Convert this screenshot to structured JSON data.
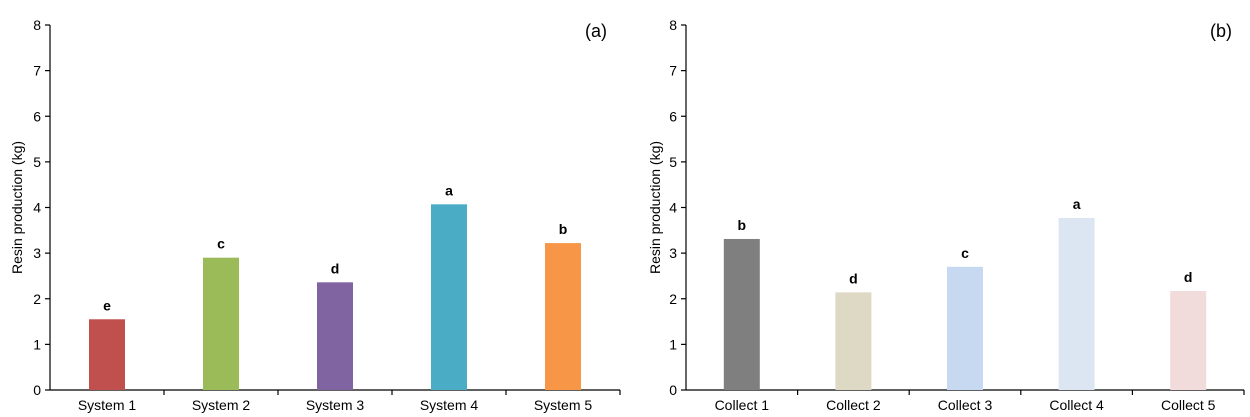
{
  "chart_data": [
    {
      "type": "bar",
      "panel_label": "(a)",
      "ylabel": "Resin production (kg)",
      "xlabel": "",
      "ylim": [
        0,
        8
      ],
      "yticks": [
        "0",
        "1",
        "2",
        "3",
        "4",
        "5",
        "6",
        "7",
        "8"
      ],
      "categories": [
        "System 1",
        "System 2",
        "System 3",
        "System 4",
        "System 5"
      ],
      "values": [
        1.55,
        2.9,
        2.36,
        4.07,
        3.22
      ],
      "letters": [
        "e",
        "c",
        "d",
        "a",
        "b"
      ],
      "colors": [
        "#c0504d",
        "#9bbb59",
        "#8064a2",
        "#4bacc6",
        "#f79646"
      ],
      "grid": false
    },
    {
      "type": "bar",
      "panel_label": "(b)",
      "ylabel": "Resin production (kg)",
      "xlabel": "",
      "ylim": [
        0,
        8
      ],
      "yticks": [
        "0",
        "1",
        "2",
        "3",
        "4",
        "5",
        "6",
        "7",
        "8"
      ],
      "categories": [
        "Collect 1",
        "Collect 2",
        "Collect 3",
        "Collect 4",
        "Collect 5"
      ],
      "values": [
        3.31,
        2.14,
        2.7,
        3.77,
        2.17
      ],
      "letters": [
        "b",
        "d",
        "c",
        "a",
        "d"
      ],
      "colors": [
        "#7f7f7f",
        "#ddd9c4",
        "#c6d9f1",
        "#dce6f2",
        "#f2dcdb"
      ],
      "grid": false
    }
  ]
}
